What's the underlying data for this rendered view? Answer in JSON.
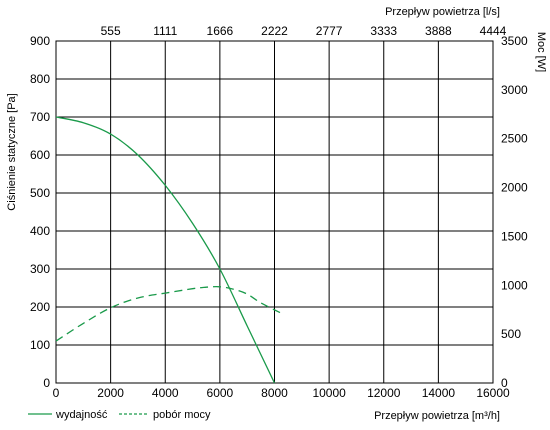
{
  "chart_data": {
    "type": "line",
    "x_axis_bottom": {
      "label": "Przepływ powietrza [m³/h]",
      "ticks": [
        0,
        2000,
        4000,
        6000,
        8000,
        10000,
        12000,
        14000,
        16000
      ],
      "range": [
        0,
        16000
      ]
    },
    "x_axis_top": {
      "label": "Przepływ powietrza [l/s]",
      "ticks": [
        555,
        1111,
        1666,
        2222,
        2777,
        3333,
        3888,
        4444
      ]
    },
    "y_axis_left": {
      "label": "Ciśnienie statyczne [Pa]",
      "ticks": [
        0,
        100,
        200,
        300,
        400,
        500,
        600,
        700,
        800,
        900
      ],
      "range": [
        0,
        900
      ]
    },
    "y_axis_right": {
      "label": "Moc [W]",
      "ticks": [
        0,
        500,
        1000,
        1500,
        2000,
        2500,
        3000,
        3500
      ],
      "range": [
        0,
        3500
      ]
    },
    "grid": true,
    "legend_position": "bottom-left",
    "series": [
      {
        "name": "wydajność",
        "axis": "left",
        "style": "solid",
        "color": "#1a9a4a",
        "x": [
          0,
          1000,
          2000,
          3000,
          4000,
          5000,
          6000,
          7000,
          8000
        ],
        "y": [
          700,
          685,
          655,
          600,
          520,
          420,
          300,
          150,
          0
        ]
      },
      {
        "name": "pobór mocy",
        "axis": "right",
        "style": "dashed",
        "color": "#1a9a4a",
        "x": [
          0,
          1000,
          2000,
          3000,
          4000,
          5000,
          5500,
          6000,
          6500,
          7000,
          7500,
          8200
        ],
        "y": [
          430,
          610,
          770,
          870,
          920,
          965,
          980,
          985,
          960,
          910,
          820,
          720
        ]
      }
    ]
  }
}
